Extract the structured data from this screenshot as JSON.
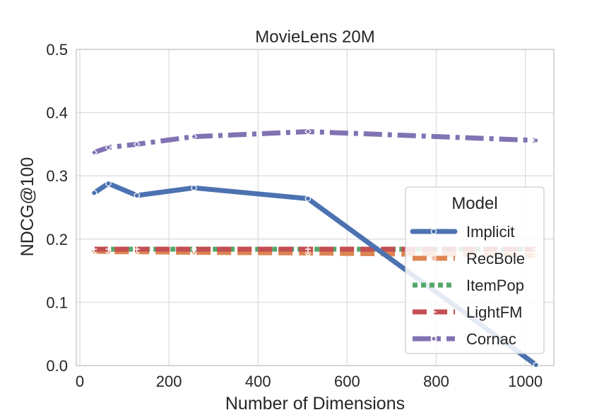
{
  "chart_data": {
    "type": "line",
    "title": "MovieLens 20M",
    "xlabel": "Number of Dimensions",
    "ylabel": "NDCG@100",
    "xlim": [
      -8,
      1064
    ],
    "ylim": [
      0.0,
      0.5
    ],
    "xticks": [
      0,
      200,
      400,
      600,
      800,
      1000
    ],
    "xtick_labels": [
      "0",
      "200",
      "400",
      "600",
      "800",
      "1000"
    ],
    "yticks": [
      0.0,
      0.1,
      0.2,
      0.3,
      0.4,
      0.5
    ],
    "ytick_labels": [
      "0.0",
      "0.1",
      "0.2",
      "0.3",
      "0.4",
      "0.5"
    ],
    "grid": true,
    "legend": {
      "title": "Model",
      "position": "right"
    },
    "x": [
      32,
      64,
      128,
      256,
      512,
      1024
    ],
    "series": [
      {
        "name": "Implicit",
        "color": "#4c72b0",
        "style": "solid",
        "marker": "circle",
        "values": [
          0.273,
          0.288,
          0.269,
          0.281,
          0.264,
          0.001
        ]
      },
      {
        "name": "RecBole",
        "color": "#dd8452",
        "style": "dashed",
        "marker": "x-circle",
        "values": [
          0.181,
          0.18,
          0.18,
          0.179,
          0.178,
          0.174
        ]
      },
      {
        "name": "ItemPop",
        "color": "#55a868",
        "style": "dotted",
        "marker": "none",
        "values": [
          0.184,
          0.184,
          0.184,
          0.184,
          0.184,
          0.184
        ]
      },
      {
        "name": "LightFM",
        "color": "#c44e52",
        "style": "dashed",
        "marker": "plus",
        "values": [
          0.184,
          0.184,
          0.184,
          0.184,
          0.184,
          0.184
        ]
      },
      {
        "name": "Cornac",
        "color": "#8172b3",
        "style": "dashdot",
        "marker": "diamond",
        "values": [
          0.337,
          0.345,
          0.35,
          0.362,
          0.37,
          0.356
        ]
      }
    ]
  }
}
